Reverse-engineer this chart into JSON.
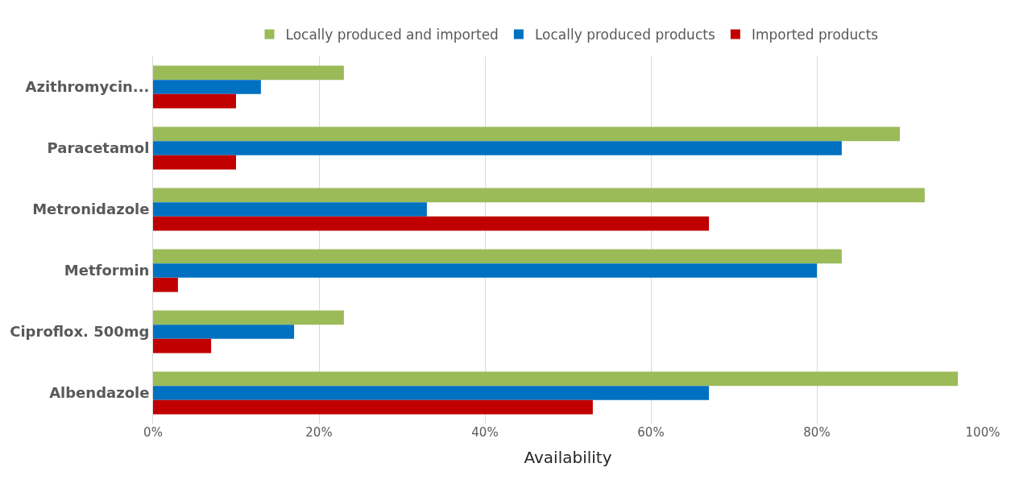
{
  "chart_data": {
    "type": "bar",
    "orientation": "horizontal",
    "xlabel": "Availability",
    "categories": [
      "Azithromycin...",
      "Paracetamol",
      "Metronidazole",
      "Metformin",
      "Ciproflox. 500mg",
      "Albendazole"
    ],
    "series": [
      {
        "name": "Locally produced and imported",
        "color": "#9bbb59",
        "values": [
          23,
          90,
          93,
          83,
          23,
          97
        ]
      },
      {
        "name": "Locally produced products",
        "color": "#0070c0",
        "values": [
          13,
          83,
          33,
          80,
          17,
          67
        ]
      },
      {
        "name": "Imported products",
        "color": "#c00000",
        "values": [
          10,
          10,
          67,
          3,
          7,
          53
        ]
      }
    ],
    "xlim": [
      0,
      100
    ],
    "xticks": [
      {
        "value": 0,
        "label": "0%"
      },
      {
        "value": 20,
        "label": "20%"
      },
      {
        "value": 40,
        "label": "40%"
      },
      {
        "value": 60,
        "label": "60%"
      },
      {
        "value": 80,
        "label": "80%"
      },
      {
        "value": 100,
        "label": "100%"
      }
    ],
    "grid": "x",
    "legend": "top"
  }
}
